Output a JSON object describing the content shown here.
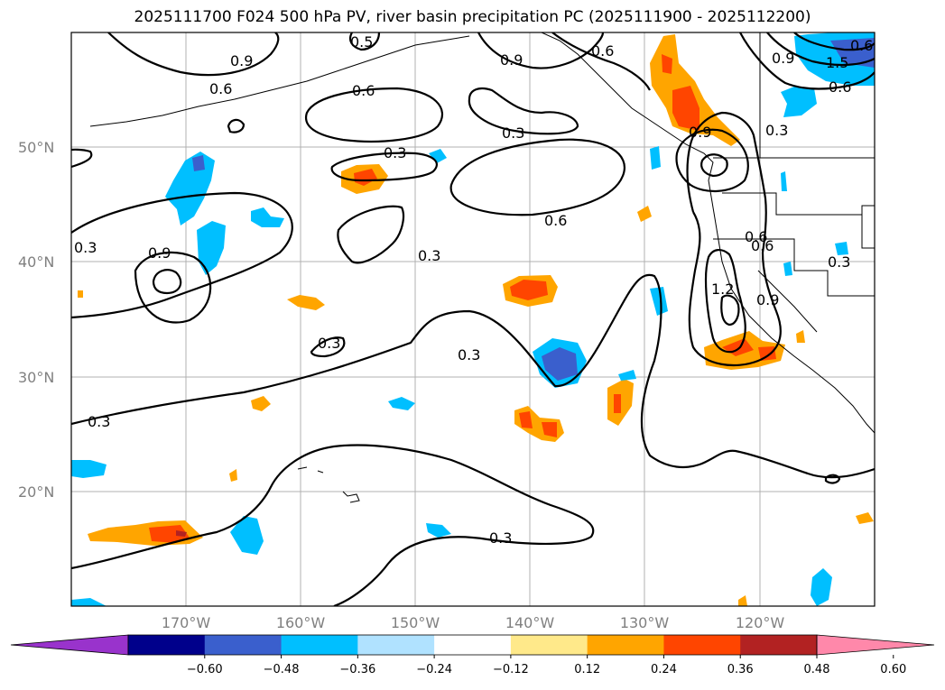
{
  "map": {
    "title": "2025111700 F024 500 hPa PV, river basin precipitation PC (2025111900 - 2025112200)",
    "lat_labels": [
      "50°N",
      "40°N",
      "30°N",
      "20°N"
    ],
    "lon_labels": [
      "170°W",
      "160°W",
      "150°W",
      "140°W",
      "130°W",
      "120°W"
    ],
    "contour_labels": [
      "0.9",
      "0.6",
      "0.6",
      "0.3",
      "0.9",
      "0.6",
      "0.3",
      "0.6",
      "0.3",
      "0.9",
      "0.3",
      "0.3",
      "0.3",
      "0.3",
      "0.3",
      "0.9",
      "0.6",
      "0.3",
      "1.2",
      "0.9",
      "0.6",
      "0.9",
      "0.3",
      "1.5",
      "0.6",
      "0.5",
      "0.6"
    ],
    "contour_label_colors": "#000000",
    "colorbar": {
      "ticks": [
        "−0.60",
        "−0.48",
        "−0.36",
        "−0.24",
        "−0.12",
        "0.12",
        "0.24",
        "0.36",
        "0.48",
        "0.60"
      ],
      "colors": [
        "#9933cc",
        "#00008b",
        "#3a5fcd",
        "#00bfff",
        "#b0e2ff",
        "#ffffff",
        "#ffe98a",
        "#ffa500",
        "#ff4500",
        "#b22222",
        "#ff88aa"
      ]
    }
  }
}
